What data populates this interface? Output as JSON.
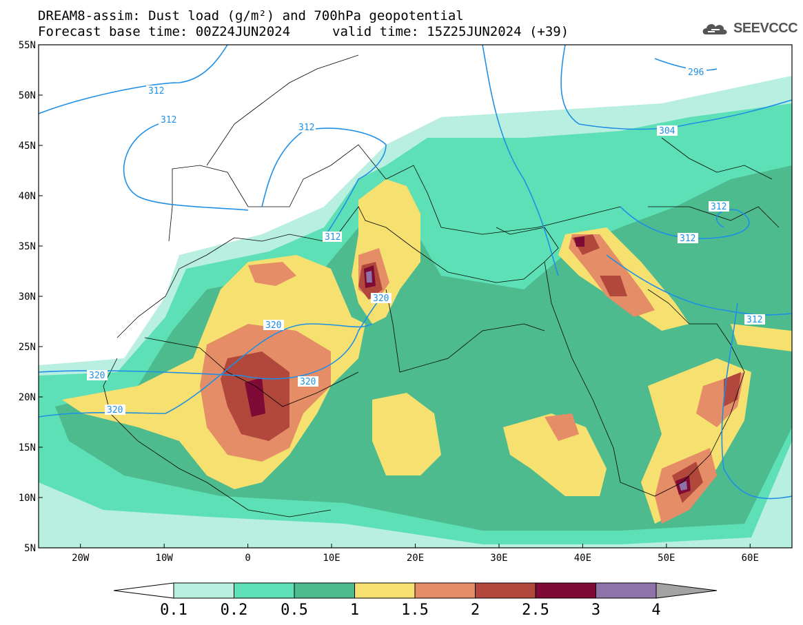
{
  "header": {
    "title_line1": "DREAM8-assim: Dust load (g/m²) and 700hPa geopotential",
    "title_line2_left": "Forecast base time: 00Z24JUN2024",
    "title_line2_right": "valid time: 15Z25JUN2024 (+39)"
  },
  "logo": {
    "text": "SEEVCCC",
    "icon": "cloud-icon"
  },
  "map": {
    "projection": "equirectangular",
    "lon_range": [
      -25,
      65
    ],
    "lat_range": [
      5,
      55
    ],
    "lat_ticks": [
      "5N",
      "10N",
      "15N",
      "20N",
      "25N",
      "30N",
      "35N",
      "40N",
      "45N",
      "50N",
      "55N"
    ],
    "lon_ticks": [
      "20W",
      "10W",
      "0",
      "10E",
      "20E",
      "30E",
      "40E",
      "50E",
      "60E"
    ],
    "contour_labels": [
      "312",
      "312",
      "312",
      "312",
      "320",
      "320",
      "320",
      "320",
      "320",
      "296",
      "304",
      "312",
      "312",
      "312"
    ]
  },
  "colorbar": {
    "levels": [
      "0.1",
      "0.2",
      "0.5",
      "1",
      "1.5",
      "2",
      "2.5",
      "3",
      "4"
    ],
    "colors": [
      "#b9efe1",
      "#5ee0b6",
      "#4dbb8e",
      "#f5e070",
      "#e58d66",
      "#b2473c",
      "#7e0a35",
      "#8e72a8",
      "#a3a3a3"
    ],
    "under_color": "#ffffff"
  },
  "colors": {
    "contour_line": "#1f8fe6",
    "contour_label": "#1f8fe6",
    "coastline": "#000000"
  }
}
